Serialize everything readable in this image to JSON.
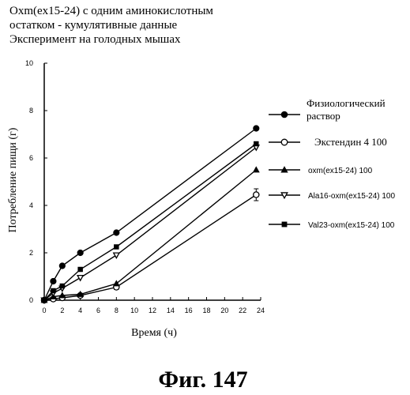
{
  "figure": {
    "title_lines": [
      "Oxm(ex15-24) с одним аминокислотным",
      "остатком - кумулятивные данные",
      "Эксперимент на голодных мышах"
    ],
    "caption": "Фиг. 147"
  },
  "chart_data": {
    "type": "line",
    "title": "Oxm(ex15-24) с одним аминокислотным остатком - кумулятивные данные. Эксперимент на голодных мышах",
    "xlabel": "Время (ч)",
    "ylabel": "Потребление пищи (г)",
    "xlim": [
      0,
      24
    ],
    "ylim": [
      0,
      10
    ],
    "x_ticks": [
      0,
      2,
      4,
      6,
      8,
      10,
      12,
      14,
      16,
      18,
      20,
      22,
      24
    ],
    "y_ticks": [
      0,
      2,
      4,
      6,
      8,
      10
    ],
    "grid": false,
    "legend_position": "right",
    "x": [
      0,
      1,
      2,
      4,
      8,
      23.5
    ],
    "series": [
      {
        "name": "Физиологический раствор",
        "marker": "filled-circle",
        "values": [
          0,
          0.8,
          1.45,
          2.0,
          2.85,
          7.25
        ]
      },
      {
        "name": "Экстендин 4 100",
        "marker": "open-circle",
        "values": [
          0,
          0.05,
          0.1,
          0.2,
          0.55,
          4.45
        ],
        "error": [
          0,
          0,
          0,
          0,
          0.1,
          0.25
        ]
      },
      {
        "name": "oxm(ex15-24) 100",
        "marker": "filled-triangle-up",
        "values": [
          0,
          0.15,
          0.2,
          0.25,
          0.7,
          5.5
        ]
      },
      {
        "name": "Ala16-oxm(ex15-24) 100",
        "marker": "open-triangle-down",
        "values": [
          0,
          0.3,
          0.5,
          0.95,
          1.9,
          6.45
        ]
      },
      {
        "name": "Val23-oxm(ex15-24) 100",
        "marker": "filled-square",
        "values": [
          0,
          0.4,
          0.6,
          1.3,
          2.25,
          6.6
        ]
      }
    ]
  }
}
